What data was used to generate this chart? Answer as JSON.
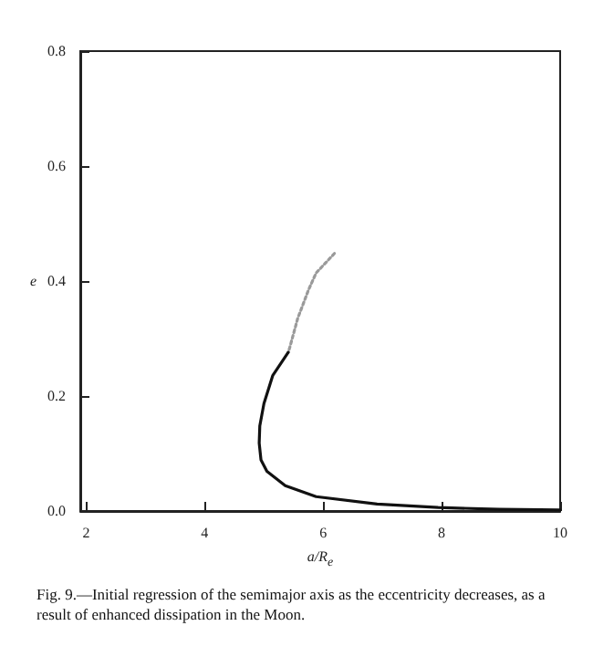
{
  "chart_data": {
    "type": "line",
    "xlabel": "a/R$_{e}$",
    "ylabel": "e",
    "xlim": [
      1.9,
      10
    ],
    "xticks": [
      2,
      4,
      6,
      8,
      10
    ],
    "ylim": [
      0,
      0.8
    ],
    "yticks": [
      {
        "value": 0,
        "label": "0.0"
      },
      0.2,
      0.4,
      0.6,
      0.8
    ],
    "grid": false,
    "marker": "none",
    "series": [
      {
        "color": "#9a9a9a",
        "line_style": "dotted",
        "x": [
          6.19,
          5.88,
          5.75,
          5.57,
          5.44,
          5.41
        ],
        "values": [
          0.448,
          0.414,
          0.384,
          0.335,
          0.286,
          0.276
        ]
      },
      {
        "color": "#111111",
        "line_style": "solid",
        "x": [
          5.41,
          5.15,
          5.0,
          4.93,
          4.92,
          4.95,
          5.05,
          5.36,
          5.88,
          6.91,
          7.94,
          8.97,
          10
        ],
        "values": [
          0.276,
          0.236,
          0.187,
          0.148,
          0.118,
          0.089,
          0.069,
          0.044,
          0.025,
          0.012,
          0.006,
          0.003,
          0.002
        ]
      }
    ],
    "annotations": [
      "Fig. 9.—Initial regression of the semimajor axis as the eccentricity decreases, as a result of enhanced dissipation in the Moon."
    ]
  }
}
